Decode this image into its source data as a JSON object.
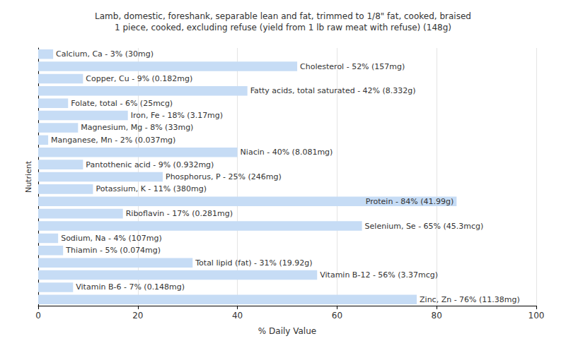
{
  "chart_data": {
    "type": "bar",
    "orientation": "horizontal",
    "title": "Lamb, domestic, foreshank, separable lean and fat, trimmed to 1/8\" fat, cooked, braised",
    "subtitle": "1 piece, cooked, excluding refuse (yield from 1 lb raw meat with refuse) (148g)",
    "x_label": "% Daily Value",
    "y_label": "Nutrient",
    "categories": [
      null,
      null,
      null,
      null,
      null,
      null,
      null,
      null,
      null,
      null,
      null,
      null,
      null,
      null,
      null,
      null,
      null,
      null,
      null,
      null,
      null
    ],
    "values": [
      3,
      52,
      9,
      42,
      6,
      18,
      8,
      2,
      40,
      9,
      25,
      11,
      84,
      17,
      65,
      4,
      5,
      31,
      56,
      7,
      76
    ],
    "value_labels": [
      "Calcium, Ca - 3% (30mg)",
      "Cholesterol - 52% (157mg)",
      "Copper, Cu - 9% (0.182mg)",
      "Fatty acids, total saturated - 42% (8.332g)",
      "Folate, total - 6% (25mcg)",
      "Iron, Fe - 18% (3.17mg)",
      "Magnesium, Mg - 8% (33mg)",
      "Manganese, Mn - 2% (0.037mg)",
      "Niacin - 40% (8.081mg)",
      "Pantothenic acid - 9% (0.932mg)",
      "Phosphorus, P - 25% (246mg)",
      "Potassium, K - 11% (380mg)",
      "Protein - 84% (41.99g)",
      "Riboflavin - 17% (0.281mg)",
      "Selenium, Se - 65% (45.3mcg)",
      "Sodium, Na - 4% (107mg)",
      "Thiamin - 5% (0.074mg)",
      "Total lipid (fat) - 31% (19.92g)",
      "Vitamin B-12 - 56% (3.37mcg)",
      "Vitamin B-6 - 7% (0.148mg)",
      "Zinc, Zn - 76% (11.38mg)"
    ],
    "data_labels": true,
    "color": "#c6dcf5",
    "xlim": [
      0,
      100
    ],
    "xticks": [
      0,
      20,
      40,
      60,
      80,
      100
    ],
    "grid": true,
    "tick_labels": "x"
  }
}
